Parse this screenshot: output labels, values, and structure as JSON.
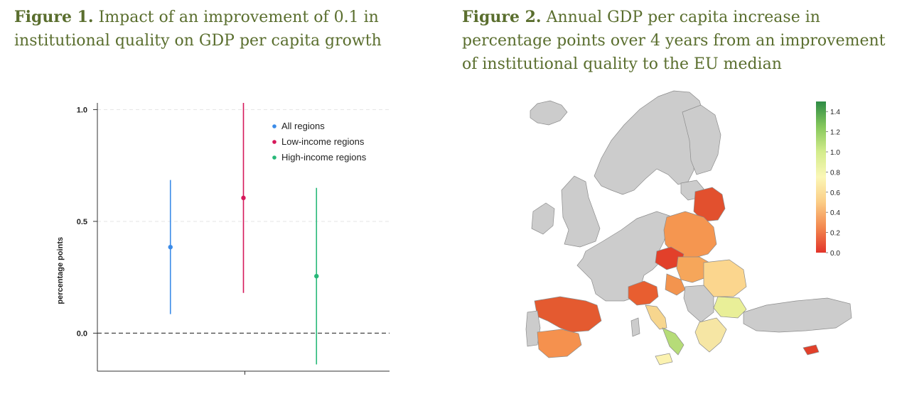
{
  "figure1": {
    "label": "Figure 1.",
    "title": " Impact of an improvement of 0.1 in institutional quality on GDP per capita growth"
  },
  "figure2": {
    "label": "Figure 2.",
    "title": " Annual GDP per capita increase in percentage points over 4 years from an improvement of institutional quality to the EU median"
  },
  "chart_data": [
    {
      "type": "scatter",
      "title": "",
      "xlabel": "",
      "ylabel": "percentage points",
      "ylim": [
        -0.17,
        1.03
      ],
      "yticks": [
        "0.0",
        "0.5",
        "1.0"
      ],
      "yticks_values": [
        0.0,
        0.5,
        1.0
      ],
      "grid": true,
      "reference_line": 0.0,
      "legend_position": "top-right",
      "series": [
        {
          "name": "All regions",
          "color": "#3b8be8",
          "estimate": 0.385,
          "ci_low": 0.085,
          "ci_high": 0.685
        },
        {
          "name": "Low-income regions",
          "color": "#d6185a",
          "estimate": 0.605,
          "ci_low": 0.18,
          "ci_high": 1.03
        },
        {
          "name": "High-income regions",
          "color": "#27b878",
          "estimate": 0.255,
          "ci_low": -0.14,
          "ci_high": 0.65
        }
      ]
    },
    {
      "type": "heatmap",
      "title": "",
      "colorbar": {
        "ticks": [
          "1.4",
          "1.2",
          "1.0",
          "0.8",
          "0.6",
          "0.4",
          "0.2",
          "0.0"
        ],
        "range": [
          0.0,
          1.5
        ],
        "colors": [
          "#e2342a",
          "#f3884f",
          "#fbcd86",
          "#fbf7b6",
          "#d3ec8c",
          "#86c85c",
          "#2e8b45"
        ]
      },
      "no_data_color": "#cccccc"
    }
  ]
}
